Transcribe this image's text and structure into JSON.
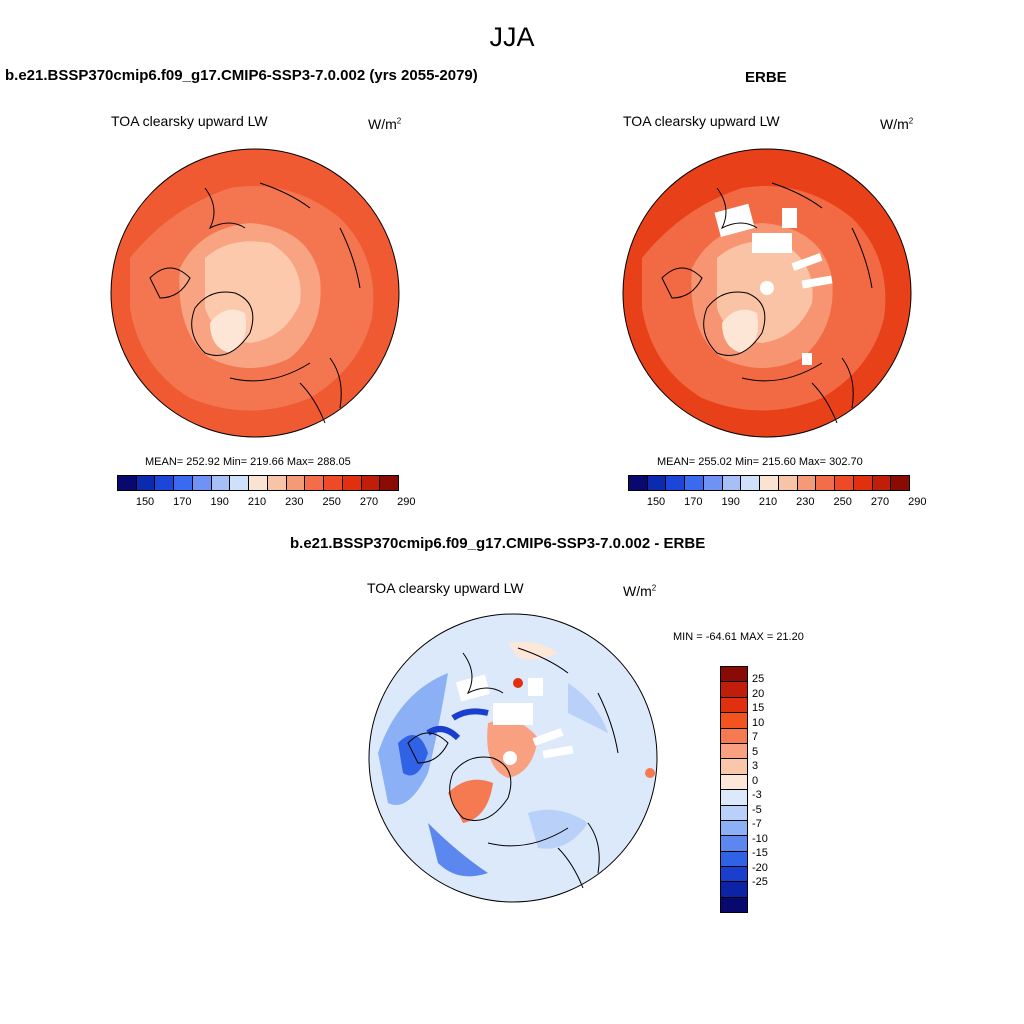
{
  "season": "JJA",
  "panel1": {
    "title": "b.e21.BSSP370cmip6.f09_g17.CMIP6-SSP3-7.0.002 (yrs 2055-2079)",
    "variable": "TOA clearsky upward LW",
    "units": "W/m",
    "units_sup": "2",
    "stats": "MEAN= 252.92  Min= 219.66  Max= 288.05"
  },
  "panel2": {
    "title": "ERBE",
    "variable": "TOA clearsky upward LW",
    "units": "W/m",
    "units_sup": "2",
    "stats": "MEAN= 255.02  Min= 215.60  Max= 302.70"
  },
  "panel3": {
    "title": "b.e21.BSSP370cmip6.f09_g17.CMIP6-SSP3-7.0.002 - ERBE",
    "variable": "TOA clearsky upward LW",
    "units": "W/m",
    "units_sup": "2",
    "stats": "MIN = -64.61 MAX =  21.20"
  },
  "colorbar_abs": {
    "labels": [
      "150",
      "170",
      "190",
      "210",
      "230",
      "250",
      "270",
      "290"
    ],
    "colors": [
      "#08086e",
      "#0a2bb0",
      "#1c45d9",
      "#3a6af0",
      "#6e93f5",
      "#a6c0f7",
      "#cfe0fb",
      "#fbe3d4",
      "#f8c4a7",
      "#f59a77",
      "#f36d4a",
      "#ee4a28",
      "#e03010",
      "#c01e08",
      "#8a0b04"
    ]
  },
  "colorbar_diff": {
    "labels": [
      "25",
      "20",
      "15",
      "10",
      "7",
      "5",
      "3",
      "0",
      "-3",
      "-5",
      "-7",
      "-10",
      "-15",
      "-20",
      "-25"
    ],
    "colors": [
      "#8a0b04",
      "#c01e08",
      "#e03010",
      "#f3531f",
      "#f57a52",
      "#f8a07f",
      "#fbc7ab",
      "#fde7d9",
      "#dce9fb",
      "#b9d0f8",
      "#8cb0f5",
      "#5b87ef",
      "#3062e6",
      "#1a3fcf",
      "#0c23a6",
      "#08086e"
    ]
  }
}
